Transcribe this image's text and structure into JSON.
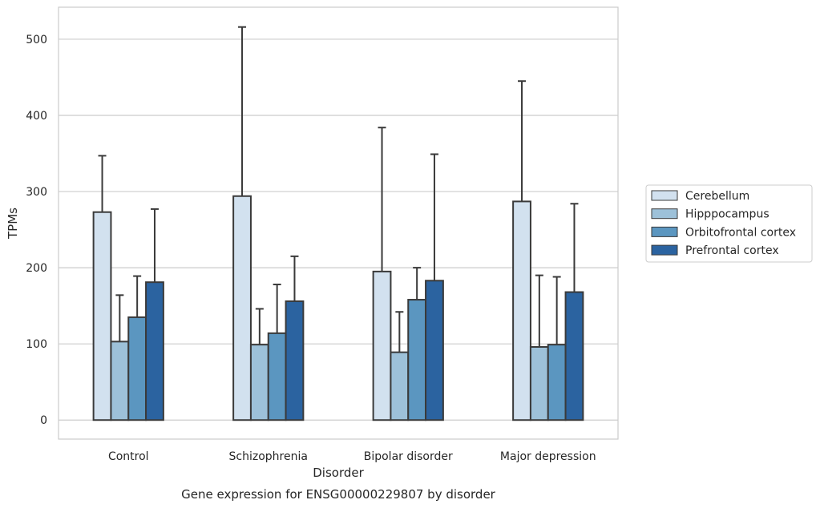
{
  "chart_data": {
    "type": "bar",
    "title": "",
    "caption": "Gene expression for ENSG00000229807 by disorder",
    "xlabel": "Disorder",
    "ylabel": "TPMs",
    "categories": [
      "Control",
      "Schizophrenia",
      "Bipolar disorder",
      "Major depression"
    ],
    "ylim": [
      -25,
      542
    ],
    "yticks": [
      0,
      100,
      200,
      300,
      400,
      500
    ],
    "grid": "horizontal",
    "legend_position": "right",
    "series": [
      {
        "name": "Cerebellum",
        "color": "#d2e1ef",
        "values": [
          273,
          294,
          195,
          287
        ],
        "error_upper": [
          347,
          516,
          384,
          445
        ]
      },
      {
        "name": "Hipppocampus",
        "color": "#9dc1d9",
        "values": [
          103,
          99,
          89,
          96
        ],
        "error_upper": [
          164,
          146,
          142,
          190
        ]
      },
      {
        "name": "Orbitofrontal cortex",
        "color": "#5b96c0",
        "values": [
          135,
          114,
          158,
          99
        ],
        "error_upper": [
          189,
          178,
          200,
          188
        ]
      },
      {
        "name": "Prefrontal cortex",
        "color": "#2b63a0",
        "values": [
          181,
          156,
          183,
          168
        ],
        "error_upper": [
          277,
          215,
          349,
          284
        ]
      }
    ]
  }
}
